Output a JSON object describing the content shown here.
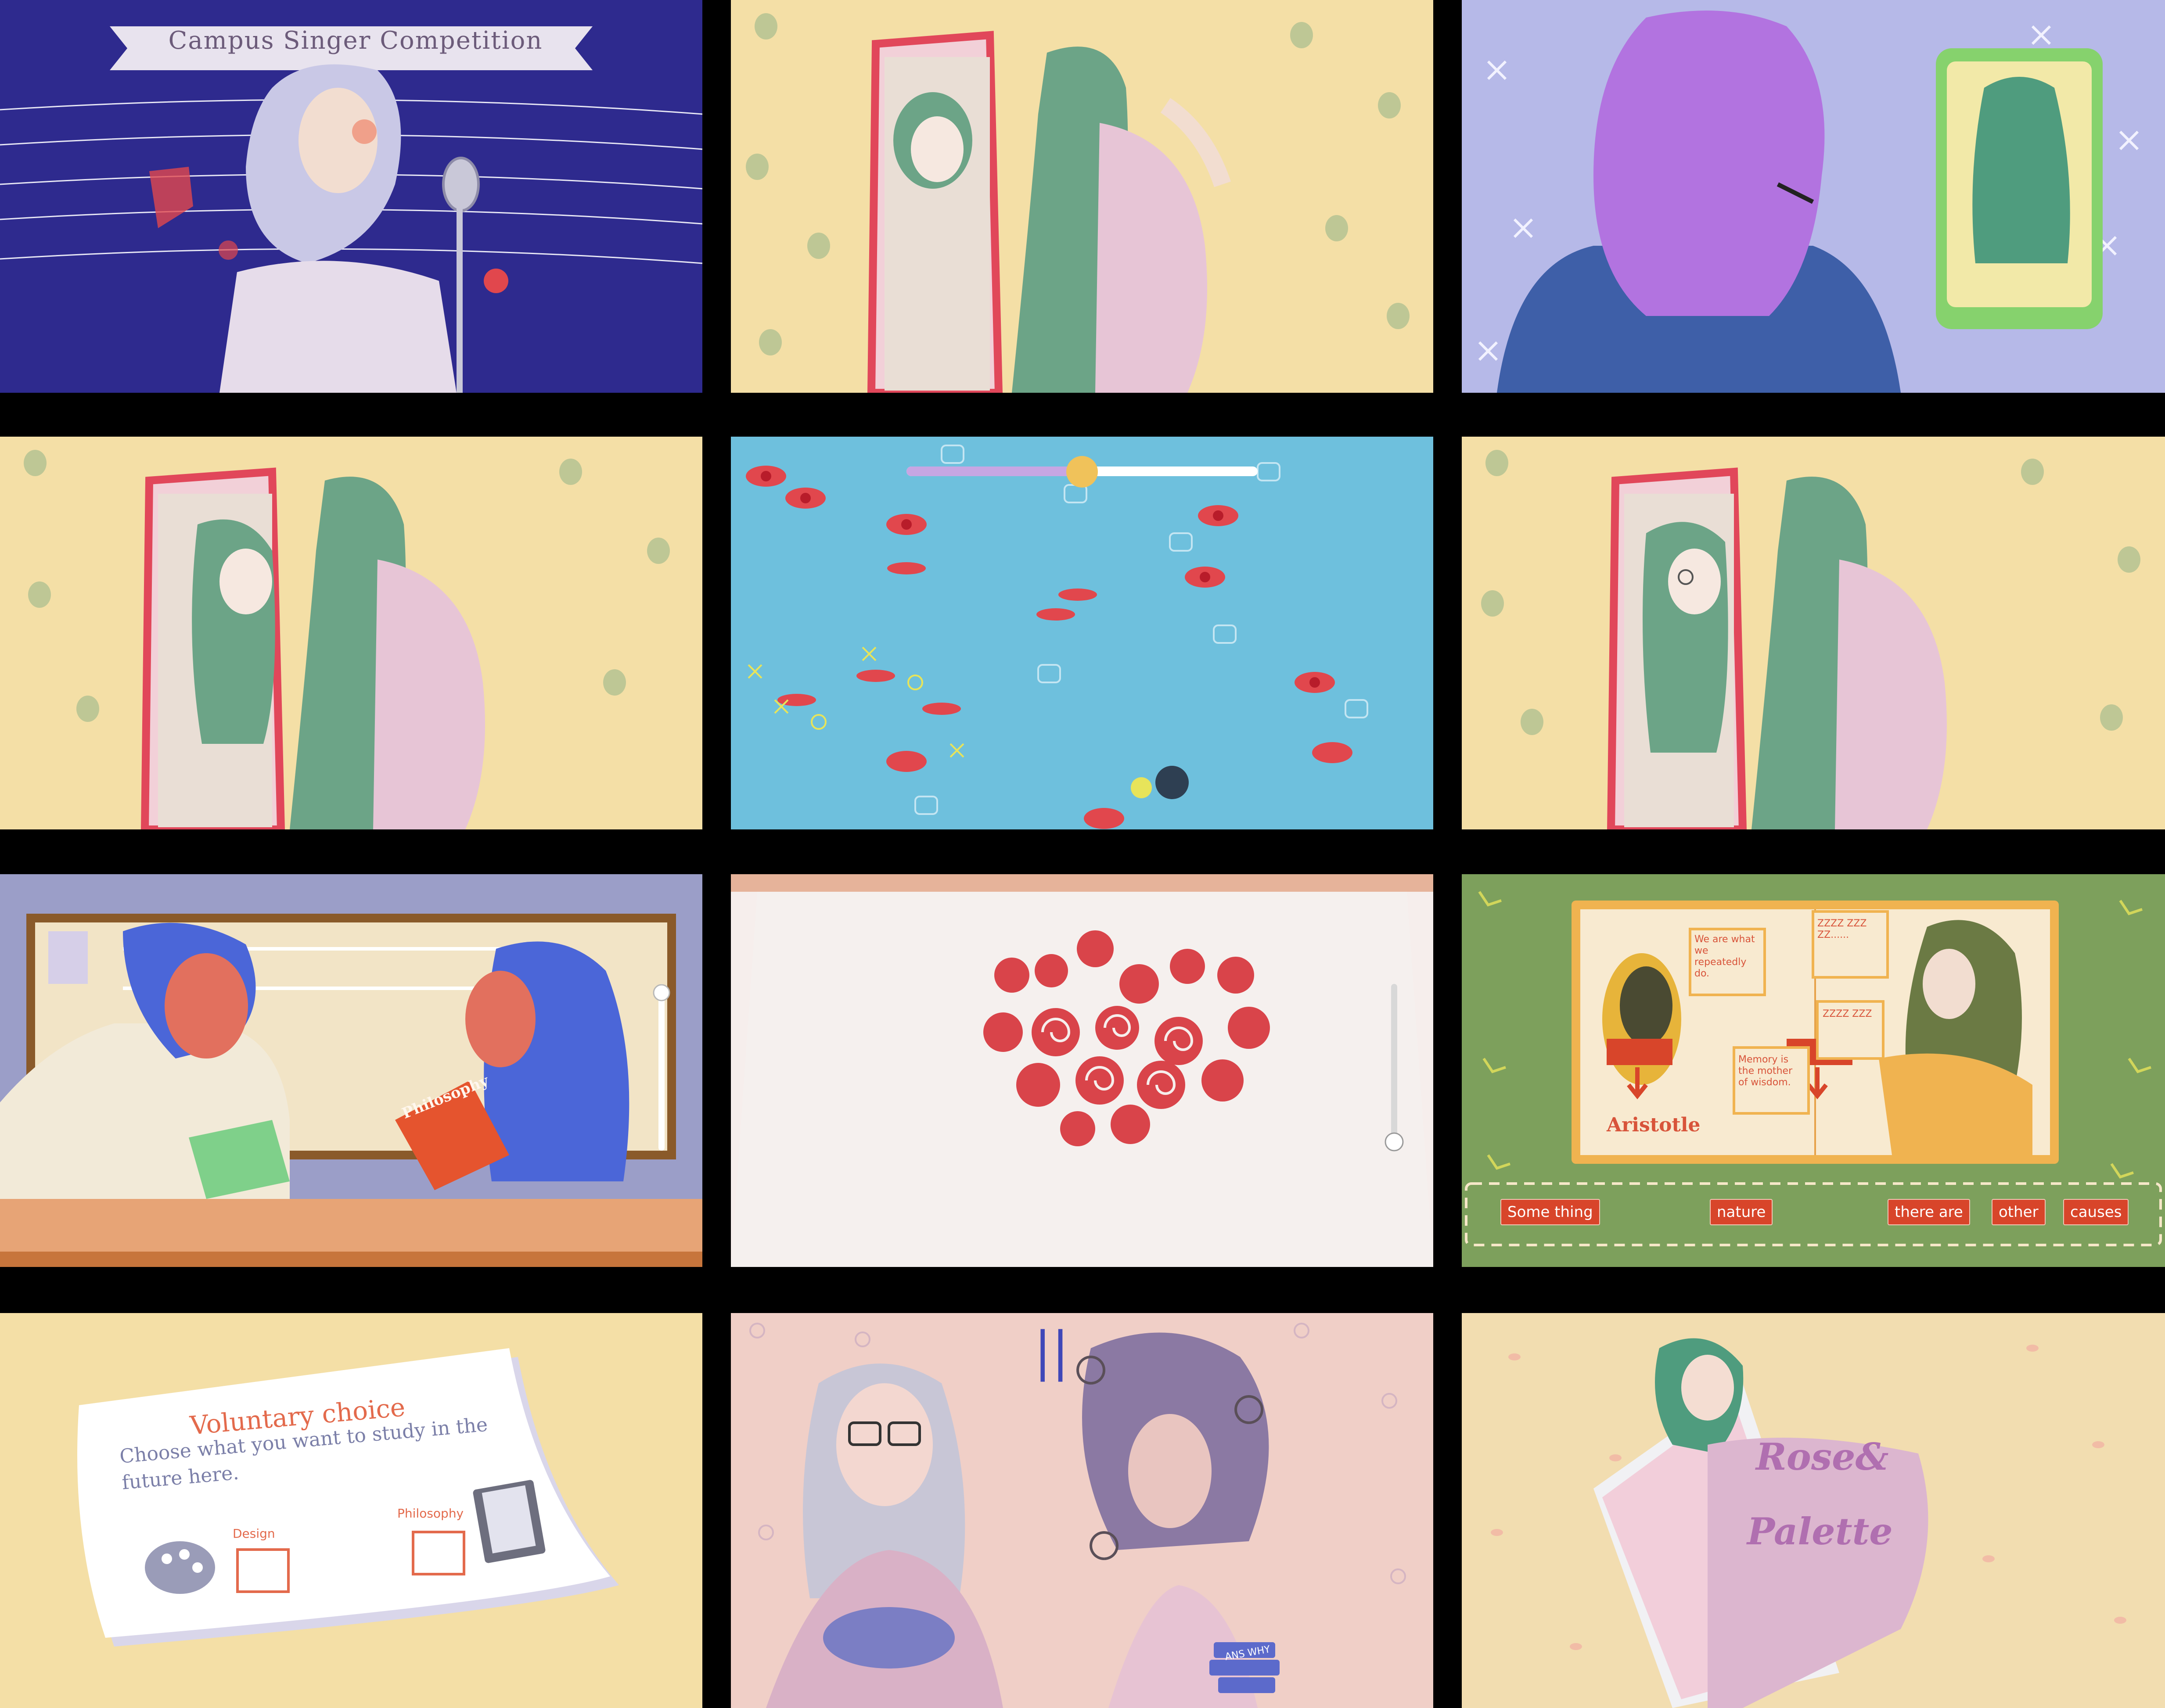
{
  "panels": {
    "singer": {
      "banner": "Campus Singer Competition"
    },
    "notebook": {
      "note_a": "We are what we repeatedly do.",
      "note_b": "ZZZZ ZZZ ZZ......",
      "note_c": "Memory is the mother of wisdom.",
      "note_d": "ZZZZ ZZZ",
      "portrait_label": "Aristotle",
      "words": [
        "Some thing",
        "nature",
        "there are",
        "other",
        "causes"
      ]
    },
    "study_choice": {
      "title": "Voluntary choice",
      "subtitle": "Choose what you want to study in the future here.",
      "option_design": "Design",
      "option_philosophy": "Philosophy"
    },
    "study_desk": {
      "book_label": "Philosophy"
    },
    "title_screen": {
      "logo_line1": "Rose&",
      "logo_line2": "Palette"
    },
    "contrast": {
      "separator": "||",
      "book_label": "ANS WHY"
    }
  },
  "slider": {
    "level": 0.5
  }
}
